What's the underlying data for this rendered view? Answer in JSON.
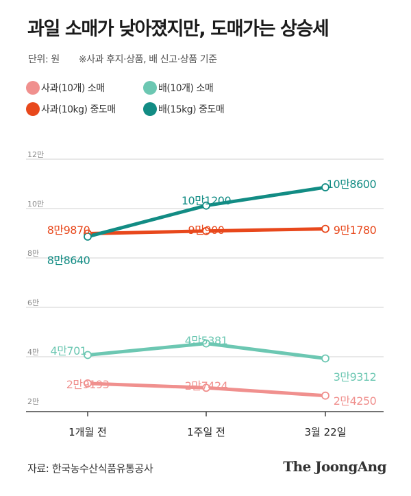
{
  "header": {
    "title": "과일 소매가 낮아졌지만, 도매가는 상승세",
    "unit": "단위: 원",
    "note": "※사과 후지·상품, 배 신고·상품 기준"
  },
  "footer": {
    "source": "자료: 한국농수산식품유통공사",
    "brand": "The JoongAng"
  },
  "chart_data": {
    "type": "line",
    "title": "과일 소매가 낮아졌지만, 도매가는 상승세",
    "xlabel": "",
    "ylabel": "원",
    "categories": [
      "1개월 전",
      "1주일 전",
      "3월 22일"
    ],
    "ylim": [
      20000,
      120000
    ],
    "yticks": [
      {
        "value": 20000,
        "label": "2만"
      },
      {
        "value": 40000,
        "label": "4만"
      },
      {
        "value": 60000,
        "label": "6만"
      },
      {
        "value": 80000,
        "label": "8만"
      },
      {
        "value": 100000,
        "label": "10만"
      },
      {
        "value": 120000,
        "label": "12만"
      }
    ],
    "series": [
      {
        "name": "사과(10개) 소매",
        "color": "#f0908e",
        "values": [
          29193,
          27424,
          24250
        ],
        "labels": [
          "2만9193",
          "2만7424",
          "2만4250"
        ]
      },
      {
        "name": "배(10개) 소매",
        "color": "#6cc7b2",
        "values": [
          40701,
          45381,
          39312
        ],
        "labels": [
          "4만701",
          "4만5381",
          "3만9312"
        ]
      },
      {
        "name": "사과(10kg) 중도매",
        "color": "#e8481c",
        "values": [
          89870,
          90900,
          91780
        ],
        "labels": [
          "8만9870",
          "9만900",
          "9만1780"
        ]
      },
      {
        "name": "배(15kg) 중도매",
        "color": "#128c84",
        "values": [
          88640,
          101200,
          108600
        ],
        "labels": [
          "8만8640",
          "10만1200",
          "10만8600"
        ]
      }
    ]
  }
}
